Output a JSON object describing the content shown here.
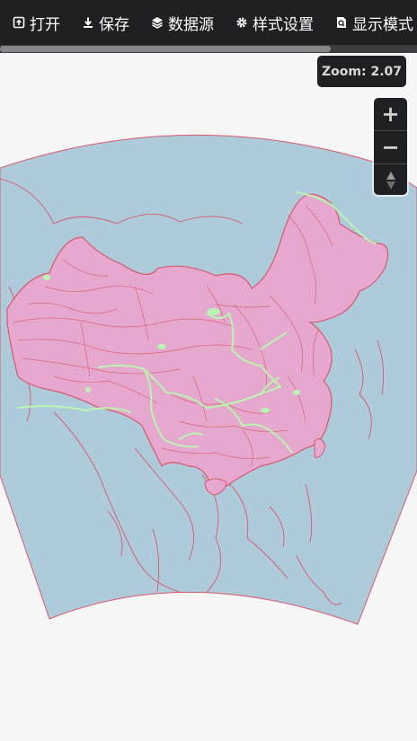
{
  "toolbar": {
    "items": [
      {
        "label": "打开",
        "icon": "open-file-icon"
      },
      {
        "label": "保存",
        "icon": "download-icon"
      },
      {
        "label": "数据源",
        "icon": "layers-icon"
      },
      {
        "label": "样式设置",
        "icon": "gear-icon"
      },
      {
        "label": "显示模式",
        "icon": "search-doc-icon"
      }
    ]
  },
  "map": {
    "zoom_label": "Zoom: 2.07",
    "zoom_in": "+",
    "zoom_out": "−",
    "colors": {
      "ocean": "#aecbdc",
      "land_outline": "#d9586a",
      "china_fill": "#e6a8cf",
      "rivers": "#b9f5b0",
      "page_bg": "#f6f6f6"
    }
  }
}
